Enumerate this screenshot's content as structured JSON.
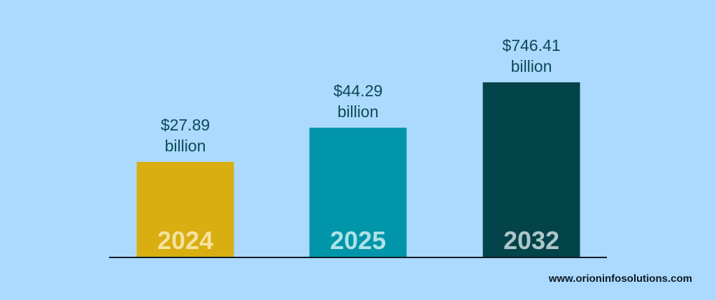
{
  "chart_data": {
    "type": "bar",
    "categories": [
      "2024",
      "2025",
      "2032"
    ],
    "values": [
      27.89,
      44.29,
      746.41
    ],
    "value_labels": [
      [
        "$27.89",
        "billion"
      ],
      [
        "$44.29",
        "billion"
      ],
      [
        "$746.41",
        "billion"
      ]
    ],
    "colors": [
      "#d8ae10",
      "#0095a9",
      "#03434a"
    ],
    "category_label_colors": [
      "#fbefc0",
      "#d9f4f7",
      "#d9e6e6"
    ],
    "scale": "non-linear (display bars, not to scale)",
    "title": "",
    "xlabel": "",
    "ylabel": ""
  },
  "footer": {
    "website": "www.orioninfosolutions.com"
  }
}
